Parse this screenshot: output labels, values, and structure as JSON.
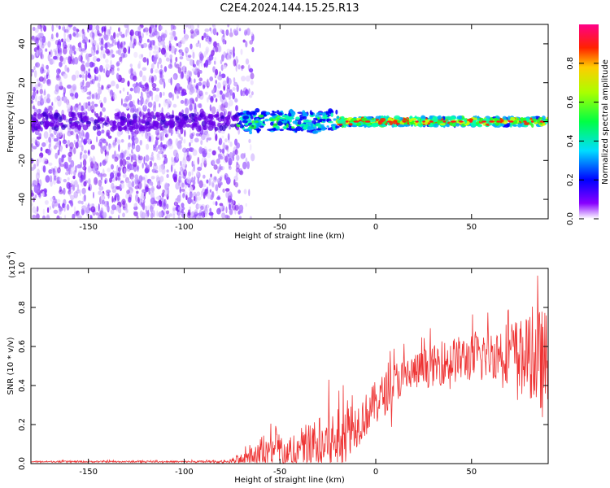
{
  "title": "C2E4.2024.144.15.25.R13",
  "chart_data": [
    {
      "type": "heatmap",
      "xlabel": "Height of straight line (km)",
      "ylabel": "Frequency (Hz)",
      "xlim": [
        -180,
        90
      ],
      "ylim": [
        -50,
        50
      ],
      "x_ticks": [
        -150,
        -100,
        -50,
        0,
        50
      ],
      "y_ticks": [
        -40,
        -20,
        0,
        20,
        40
      ],
      "colorbar": {
        "label": "Normalized spectral amplitude",
        "range": [
          0,
          1
        ],
        "ticks": [
          "0.0",
          "0.2",
          "0.4",
          "0.6",
          "0.8"
        ],
        "colors": [
          "#ffffff",
          "#7700ff",
          "#0000ff",
          "#00ffff",
          "#00ff00",
          "#ffff00",
          "#ff0000",
          "#ff0077"
        ]
      },
      "regions": [
        {
          "x_range": [
            -180,
            -72
          ],
          "freq_range": [
            -50,
            50
          ],
          "amplitude": "low, diffuse"
        },
        {
          "x_range": [
            -72,
            -20
          ],
          "freq_center": 0,
          "freq_halfwidth": 5,
          "amplitude": "0.3-0.6"
        },
        {
          "x_range": [
            -20,
            90
          ],
          "freq_center": 0,
          "freq_halfwidth": 2,
          "amplitude": "0.6-1.0"
        }
      ]
    },
    {
      "type": "line",
      "xlabel": "Height of straight line (km)",
      "ylabel": "SNR (10 * v/v)",
      "y_scale_label": "(x10",
      "y_scale_exp": "4",
      "xlim": [
        -180,
        90
      ],
      "ylim": [
        0,
        1.0
      ],
      "x_ticks": [
        -150,
        -100,
        -50,
        0,
        50
      ],
      "y_ticks": [
        "0.0",
        "0.2",
        "0.4",
        "0.6",
        "0.8",
        "1.0"
      ],
      "color": "#ee3333",
      "envelope": {
        "x": [
          -180,
          -100,
          -78,
          -70,
          -60,
          -50,
          -45,
          -40,
          -35,
          -30,
          -25,
          -20,
          -15,
          -10,
          -5,
          0,
          5,
          10,
          20,
          30,
          40,
          50,
          60,
          70,
          80,
          85,
          90
        ],
        "base": [
          0.01,
          0.01,
          0.01,
          0.02,
          0.04,
          0.06,
          0.05,
          0.07,
          0.08,
          0.09,
          0.11,
          0.12,
          0.17,
          0.2,
          0.25,
          0.32,
          0.36,
          0.42,
          0.47,
          0.5,
          0.53,
          0.54,
          0.56,
          0.58,
          0.55,
          0.52,
          0.5
        ],
        "amp": [
          0.005,
          0.005,
          0.01,
          0.04,
          0.08,
          0.14,
          0.1,
          0.14,
          0.16,
          0.18,
          0.2,
          0.25,
          0.17,
          0.15,
          0.14,
          0.13,
          0.14,
          0.13,
          0.12,
          0.13,
          0.15,
          0.15,
          0.16,
          0.2,
          0.25,
          0.35,
          0.35
        ]
      }
    }
  ]
}
